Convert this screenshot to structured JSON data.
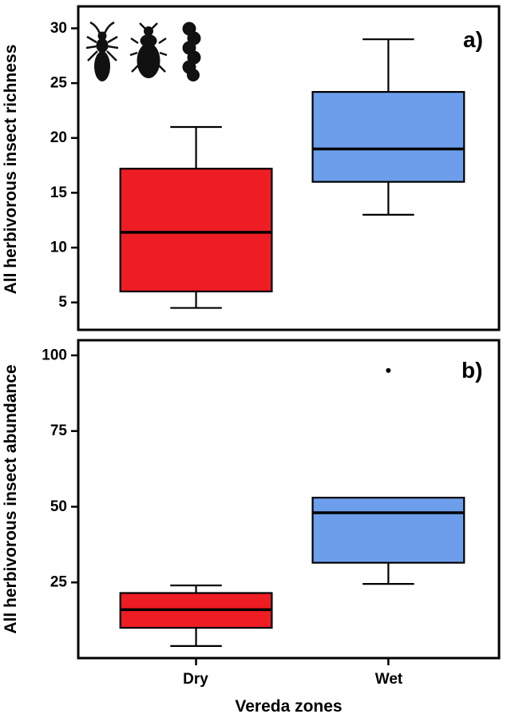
{
  "figure": {
    "x_axis_title": "Vereda zones",
    "categories": [
      "Dry",
      "Wet"
    ],
    "background_color": "#ffffff",
    "axis_color": "#000000"
  },
  "icons": [
    "true-bug-icon",
    "beetle-icon",
    "caterpillar-icon"
  ],
  "chart_data": [
    {
      "type": "boxplot",
      "panel_label": "a)",
      "ylabel": "All herbivorous insect richness",
      "categories": [
        "Dry",
        "Wet"
      ],
      "ylim": [
        2.5,
        32
      ],
      "yticks": [
        5,
        10,
        15,
        20,
        25,
        30
      ],
      "grid": false,
      "series": [
        {
          "name": "Dry",
          "color": "#ee1c23",
          "whisker_low": 4.5,
          "q1": 6.0,
          "median": 11.4,
          "q3": 17.2,
          "whisker_high": 21,
          "outliers": []
        },
        {
          "name": "Wet",
          "color": "#6d9eeb",
          "whisker_low": 13,
          "q1": 16,
          "median": 19,
          "q3": 24.2,
          "whisker_high": 29,
          "outliers": []
        }
      ]
    },
    {
      "type": "boxplot",
      "panel_label": "b)",
      "ylabel": "All herbivorous insect abundance",
      "categories": [
        "Dry",
        "Wet"
      ],
      "ylim": [
        0,
        105
      ],
      "yticks": [
        25,
        50,
        75,
        100
      ],
      "grid": false,
      "series": [
        {
          "name": "Dry",
          "color": "#ee1c23",
          "whisker_low": 4,
          "q1": 10,
          "median": 16,
          "q3": 21.5,
          "whisker_high": 24,
          "outliers": []
        },
        {
          "name": "Wet",
          "color": "#6d9eeb",
          "whisker_low": 24.5,
          "q1": 31.5,
          "median": 48,
          "q3": 53,
          "whisker_high": 53,
          "outliers": [
            95
          ]
        }
      ]
    }
  ]
}
